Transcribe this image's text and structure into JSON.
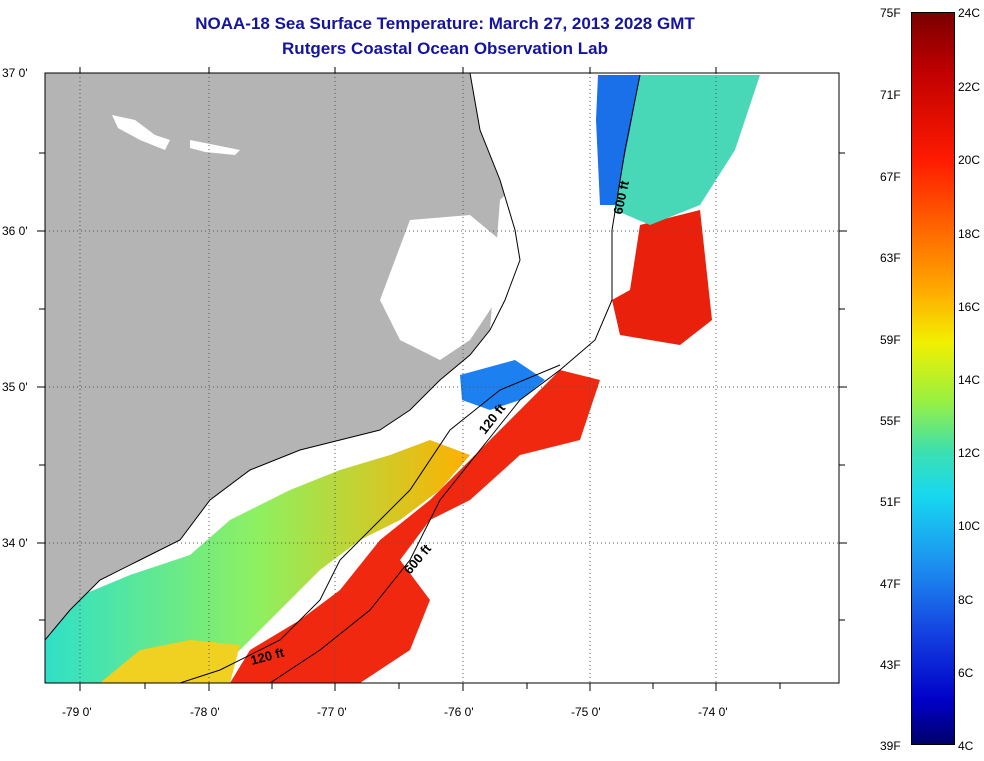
{
  "title": {
    "line1": "NOAA-18 Sea Surface Temperature:  March 27, 2013 2028 GMT",
    "line2": "Rutgers Coastal Ocean Observation Lab"
  },
  "map": {
    "lat_labels": [
      "37 0'",
      "36 0'",
      "35 0'",
      "34 0'"
    ],
    "lon_labels": [
      "-79 0'",
      "-78 0'",
      "-77 0'",
      "-76 0'",
      "-75 0'",
      "-74 0'"
    ],
    "contours": [
      "600 ft",
      "120 ft",
      "600 ft",
      "120 ft"
    ],
    "colors": {
      "land": "#b4b4b4",
      "cloud": "#ffffff"
    }
  },
  "colorbar": {
    "fahrenheit": [
      "75F",
      "71F",
      "67F",
      "63F",
      "59F",
      "55F",
      "51F",
      "47F",
      "43F",
      "39F"
    ],
    "celsius": [
      "24C",
      "22C",
      "20C",
      "18C",
      "16C",
      "14C",
      "12C",
      "10C",
      "8C",
      "6C",
      "4C"
    ]
  }
}
